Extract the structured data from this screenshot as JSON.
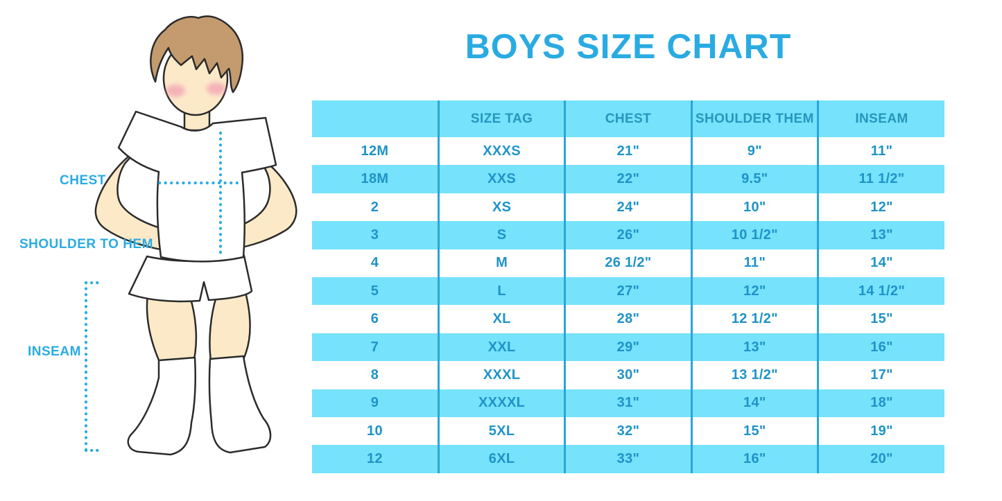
{
  "title": "BOYS SIZE CHART",
  "diagram": {
    "chest_label": "CHEST",
    "shoulder_to_hem_label": "SHOULDER TO HEM",
    "inseam_label": "INSEAM"
  },
  "chart_data": {
    "type": "table",
    "title": "BOYS SIZE CHART",
    "columns": [
      "",
      "SIZE TAG",
      "CHEST",
      "SHOULDER THEM",
      "INSEAM"
    ],
    "rows": [
      [
        "12M",
        "XXXS",
        "21\"",
        "9\"",
        "11\""
      ],
      [
        "18M",
        "XXS",
        "22\"",
        "9.5\"",
        "11 1/2\""
      ],
      [
        "2",
        "XS",
        "24\"",
        "10\"",
        "12\""
      ],
      [
        "3",
        "S",
        "26\"",
        "10 1/2\"",
        "13\""
      ],
      [
        "4",
        "M",
        "26 1/2\"",
        "11\"",
        "14\""
      ],
      [
        "5",
        "L",
        "27\"",
        "12\"",
        "14 1/2\""
      ],
      [
        "6",
        "XL",
        "28\"",
        "12 1/2\"",
        "15\""
      ],
      [
        "7",
        "XXL",
        "29\"",
        "13\"",
        "16\""
      ],
      [
        "8",
        "XXXL",
        "30\"",
        "13 1/2\"",
        "17\""
      ],
      [
        "9",
        "XXXXL",
        "31\"",
        "14\"",
        "18\""
      ],
      [
        "10",
        "5XL",
        "32\"",
        "15\"",
        "19\""
      ],
      [
        "12",
        "6XL",
        "33\"",
        "16\"",
        "20\""
      ]
    ],
    "layout": "header row cyan, data rows alternate white/cyan, blue column dividers"
  },
  "colors": {
    "title_blue": "#29ABE2",
    "stripe_cyan": "#76E2FB",
    "divider_blue": "#2AA5D8",
    "cell_text_blue": "#1E93C8",
    "header_text_blue": "#2596BE",
    "skin": "#FCE9C8",
    "hair_brown": "#C39B6E",
    "blush_pink": "#F08FB0",
    "outline": "#2B2B2B"
  }
}
